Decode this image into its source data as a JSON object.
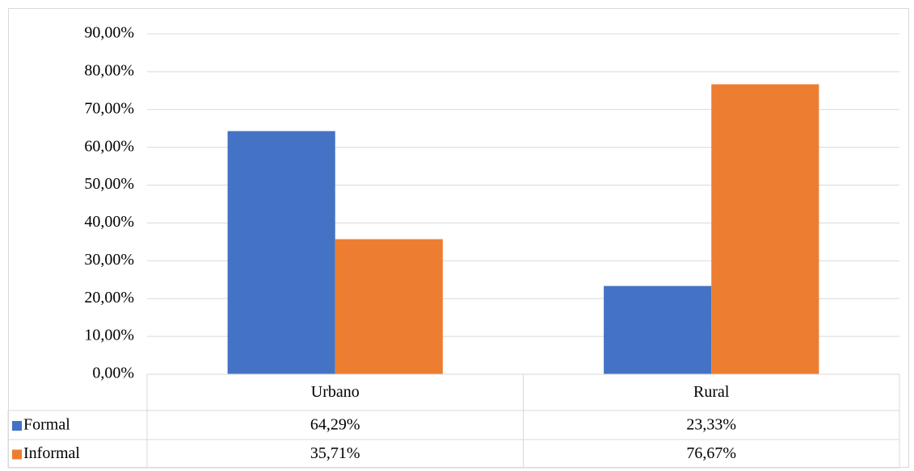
{
  "chart_data": {
    "type": "bar",
    "categories": [
      "Urbano",
      "Rural"
    ],
    "series": [
      {
        "name": "Formal",
        "color": "#4472c4",
        "values": [
          64.29,
          23.33
        ],
        "value_labels": [
          "64,29%",
          "23,33%"
        ]
      },
      {
        "name": "Informal",
        "color": "#ed7d31",
        "values": [
          35.71,
          76.67
        ],
        "value_labels": [
          "35,71%",
          "76,67%"
        ]
      }
    ],
    "ylim": [
      0,
      90
    ],
    "yticks": [
      {
        "value": 0,
        "label": "0,00%"
      },
      {
        "value": 10,
        "label": "10,00%"
      },
      {
        "value": 20,
        "label": "20,00%"
      },
      {
        "value": 30,
        "label": "30,00%"
      },
      {
        "value": 40,
        "label": "40,00%"
      },
      {
        "value": 50,
        "label": "50,00%"
      },
      {
        "value": 60,
        "label": "60,00%"
      },
      {
        "value": 70,
        "label": "70,00%"
      },
      {
        "value": 80,
        "label": "80,00%"
      },
      {
        "value": 90,
        "label": "90,00%"
      }
    ],
    "grid": true
  }
}
